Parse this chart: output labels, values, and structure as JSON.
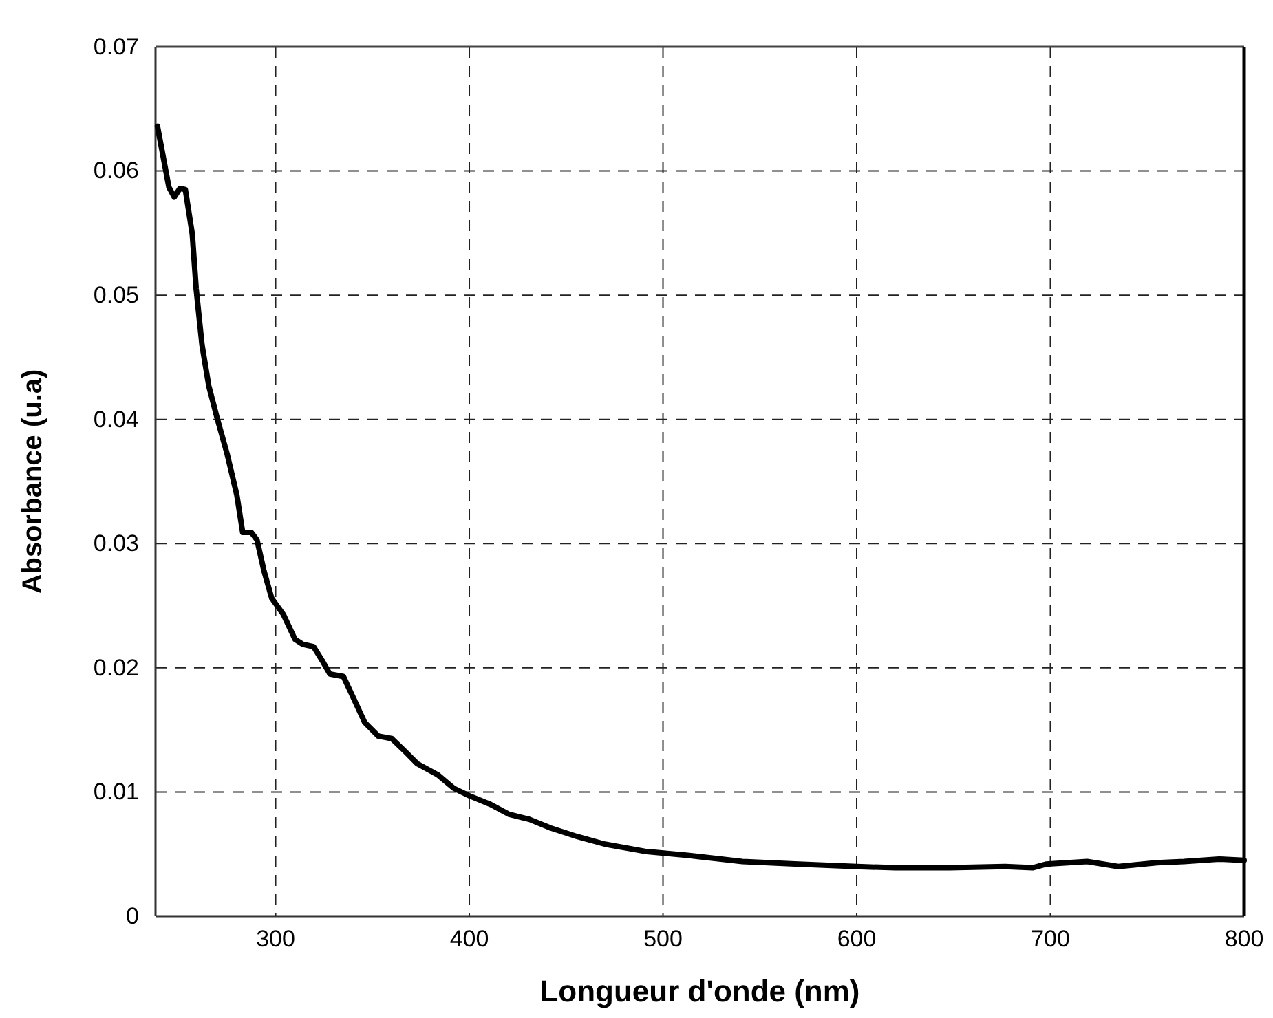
{
  "chart_data": {
    "type": "line",
    "xlabel": "Longueur d'onde (nm)",
    "ylabel": "Absorbance (u.a)",
    "xlim": [
      238,
      800
    ],
    "xticks": [
      300,
      400,
      500,
      600,
      700,
      800
    ],
    "ylim": [
      0,
      0.07
    ],
    "yticks": [
      0,
      0.01,
      0.02,
      0.03,
      0.04,
      0.05,
      0.06,
      0.07
    ],
    "grid": true,
    "line_style": "solid",
    "marker": "none",
    "series": [
      {
        "color": "#000000",
        "x": [
          239,
          244.9,
          247.7,
          250.6,
          253.4,
          257,
          259,
          262,
          265.5,
          270,
          275,
          280,
          283,
          287.5,
          290.4,
          294,
          298,
          304,
          310,
          314,
          319.6,
          324,
          328,
          335,
          339.5,
          346,
          353,
          360,
          366,
          373,
          383.6,
          392,
          400,
          411,
          420.6,
          431,
          442,
          456,
          470,
          491.6,
          512.8,
          541,
          569.9,
          600,
          620,
          648,
          676.6,
          690.8,
          698,
          719,
          735,
          755,
          769,
          787,
          800
        ],
        "values": [
          0.0636,
          0.0587,
          0.0579,
          0.0586,
          0.0585,
          0.0549,
          0.0505,
          0.046,
          0.0427,
          0.04,
          0.0372,
          0.0339,
          0.0309,
          0.0309,
          0.0303,
          0.0278,
          0.0256,
          0.0243,
          0.0223,
          0.0219,
          0.0217,
          0.0206,
          0.0195,
          0.0193,
          0.0178,
          0.0156,
          0.0145,
          0.0143,
          0.0134,
          0.0123,
          0.0114,
          0.0103,
          0.0097,
          0.009,
          0.0082,
          0.0078,
          0.0071,
          0.0064,
          0.0058,
          0.0052,
          0.0049,
          0.0044,
          0.0042,
          0.004,
          0.0039,
          0.0039,
          0.004,
          0.0039,
          0.0042,
          0.0044,
          0.004,
          0.0043,
          0.0044,
          0.0046,
          0.0045
        ]
      }
    ]
  }
}
